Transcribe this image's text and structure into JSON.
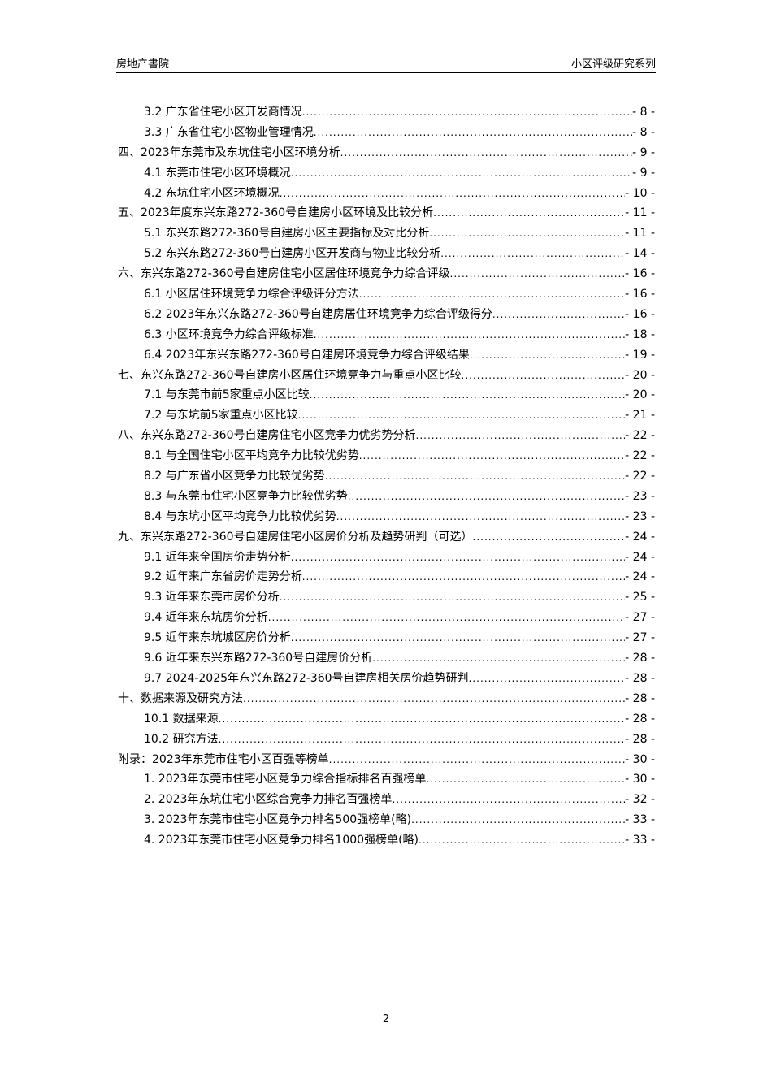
{
  "header": {
    "left": "房地产書院",
    "right": "小区评级研究系列"
  },
  "toc": [
    {
      "level": 2,
      "title": "3.2 广东省住宅小区开发商情况",
      "page": "- 8 -"
    },
    {
      "level": 2,
      "title": "3.3 广东省住宅小区物业管理情况",
      "page": "- 8 -"
    },
    {
      "level": 1,
      "title": "四、2023年东莞市及东坑住宅小区环境分析",
      "page": "- 9 -"
    },
    {
      "level": 2,
      "title": "4.1 东莞市住宅小区环境概况",
      "page": "- 9 -"
    },
    {
      "level": 2,
      "title": "4.2 东坑住宅小区环境概况",
      "page": "- 10 -"
    },
    {
      "level": 1,
      "title": "五、2023年度东兴东路272-360号自建房小区环境及比较分析",
      "page": "- 11 -"
    },
    {
      "level": 2,
      "title": "5.1 东兴东路272-360号自建房小区主要指标及对比分析",
      "page": "- 11 -"
    },
    {
      "level": 2,
      "title": "5.2 东兴东路272-360号自建房小区开发商与物业比较分析",
      "page": "- 14 -"
    },
    {
      "level": 1,
      "title": "六、东兴东路272-360号自建房住宅小区居住环境竞争力综合评级",
      "page": "- 16 -"
    },
    {
      "level": 2,
      "title": "6.1 小区居住环境竞争力综合评级评分方法",
      "page": "- 16 -"
    },
    {
      "level": 2,
      "title": "6.2 2023年东兴东路272-360号自建房居住环境竞争力综合评级得分",
      "page": "- 16 -"
    },
    {
      "level": 2,
      "title": "6.3 小区环境竞争力综合评级标准",
      "page": "- 18 -"
    },
    {
      "level": 2,
      "title": "6.4 2023年东兴东路272-360号自建房环境竞争力综合评级结果",
      "page": "- 19 -"
    },
    {
      "level": 1,
      "title": "七、东兴东路272-360号自建房小区居住环境竞争力与重点小区比较",
      "page": "- 20 -"
    },
    {
      "level": 2,
      "title": "7.1 与东莞市前5家重点小区比较",
      "page": "- 20 -"
    },
    {
      "level": 2,
      "title": "7.2 与东坑前5家重点小区比较",
      "page": "- 21 -"
    },
    {
      "level": 1,
      "title": "八、东兴东路272-360号自建房住宅小区竞争力优劣势分析",
      "page": "- 22 -"
    },
    {
      "level": 2,
      "title": "8.1 与全国住宅小区平均竞争力比较优劣势",
      "page": "- 22 -"
    },
    {
      "level": 2,
      "title": "8.2 与广东省小区竞争力比较优劣势",
      "page": "- 22 -"
    },
    {
      "level": 2,
      "title": "8.3 与东莞市住宅小区竞争力比较优劣势",
      "page": "- 23 -"
    },
    {
      "level": 2,
      "title": "8.4 与东坑小区平均竞争力比较优劣势",
      "page": "- 23 -"
    },
    {
      "level": 1,
      "title": "九、东兴东路272-360号自建房住宅小区房价分析及趋势研判（可选）",
      "page": "- 24 -"
    },
    {
      "level": 2,
      "title": "9.1 近年来全国房价走势分析",
      "page": "- 24 -"
    },
    {
      "level": 2,
      "title": "9.2 近年来广东省房价走势分析",
      "page": "- 24 -"
    },
    {
      "level": 2,
      "title": "9.3 近年来东莞市房价分析",
      "page": "- 25 -"
    },
    {
      "level": 2,
      "title": "9.4 近年来东坑房价分析",
      "page": "- 27 -"
    },
    {
      "level": 2,
      "title": "9.5 近年来东坑城区房价分析",
      "page": "- 27 -"
    },
    {
      "level": 2,
      "title": "9.6 近年来东兴东路272-360号自建房价分析",
      "page": "- 28 -"
    },
    {
      "level": 2,
      "title": "9.7 2024-2025年东兴东路272-360号自建房相关房价趋势研判",
      "page": "- 28 -"
    },
    {
      "level": 1,
      "title": "十、数据来源及研究方法",
      "page": "- 28 -"
    },
    {
      "level": 2,
      "title": "10.1 数据来源",
      "page": "- 28 -"
    },
    {
      "level": 2,
      "title": "10.2 研究方法",
      "page": "- 28 -"
    },
    {
      "level": 1,
      "title": "附录：2023年东莞市住宅小区百强等榜单",
      "page": "- 30 -"
    },
    {
      "level": 2,
      "title": "1. 2023年东莞市住宅小区竞争力综合指标排名百强榜单",
      "page": "- 30 -"
    },
    {
      "level": 2,
      "title": "2. 2023年东坑住宅小区综合竞争力排名百强榜单",
      "page": "- 32 -"
    },
    {
      "level": 2,
      "title": "3. 2023年东莞市住宅小区竞争力排名500强榜单(略)",
      "page": "- 33 -"
    },
    {
      "level": 2,
      "title": "4. 2023年东莞市住宅小区竞争力排名1000强榜单(略)",
      "page": "- 33 -"
    }
  ],
  "footer": {
    "page_number": "2"
  }
}
